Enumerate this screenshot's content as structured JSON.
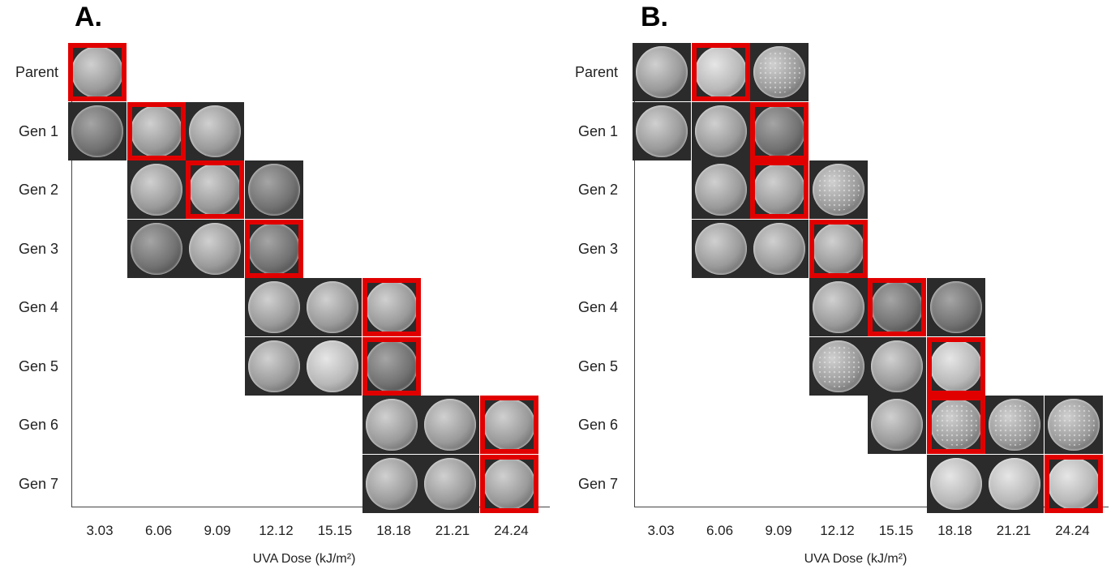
{
  "colors": {
    "highlight": "#e10000",
    "cell_background": "#2b2b2b",
    "axis": "#444444"
  },
  "panels": [
    {
      "letter": "A.",
      "rows": [
        "Parent",
        "Gen 1",
        "Gen 2",
        "Gen 3",
        "Gen 4",
        "Gen 5",
        "Gen 6",
        "Gen 7"
      ],
      "doses": [
        "3.03",
        "6.06",
        "9.09",
        "12.12",
        "15.15",
        "18.18",
        "21.21",
        "24.24"
      ],
      "xlabel": "UVA Dose (kJ/m²)",
      "plates": [
        {
          "row": "Parent",
          "dose": "3.03",
          "selected": true
        },
        {
          "row": "Gen 1",
          "dose": "3.03",
          "selected": false,
          "tone": "dark"
        },
        {
          "row": "Gen 1",
          "dose": "6.06",
          "selected": true
        },
        {
          "row": "Gen 1",
          "dose": "9.09",
          "selected": false
        },
        {
          "row": "Gen 2",
          "dose": "6.06",
          "selected": false
        },
        {
          "row": "Gen 2",
          "dose": "9.09",
          "selected": true
        },
        {
          "row": "Gen 2",
          "dose": "12.12",
          "selected": false,
          "tone": "dark"
        },
        {
          "row": "Gen 3",
          "dose": "6.06",
          "selected": false,
          "tone": "dark"
        },
        {
          "row": "Gen 3",
          "dose": "9.09",
          "selected": false
        },
        {
          "row": "Gen 3",
          "dose": "12.12",
          "selected": true,
          "tone": "dark"
        },
        {
          "row": "Gen 4",
          "dose": "12.12",
          "selected": false
        },
        {
          "row": "Gen 4",
          "dose": "15.15",
          "selected": false
        },
        {
          "row": "Gen 4",
          "dose": "18.18",
          "selected": true
        },
        {
          "row": "Gen 5",
          "dose": "12.12",
          "selected": false
        },
        {
          "row": "Gen 5",
          "dose": "15.15",
          "selected": false,
          "tone": "light"
        },
        {
          "row": "Gen 5",
          "dose": "18.18",
          "selected": true,
          "tone": "dark"
        },
        {
          "row": "Gen 6",
          "dose": "18.18",
          "selected": false
        },
        {
          "row": "Gen 6",
          "dose": "21.21",
          "selected": false
        },
        {
          "row": "Gen 6",
          "dose": "24.24",
          "selected": true
        },
        {
          "row": "Gen 7",
          "dose": "18.18",
          "selected": false
        },
        {
          "row": "Gen 7",
          "dose": "21.21",
          "selected": false
        },
        {
          "row": "Gen 7",
          "dose": "24.24",
          "selected": true
        }
      ]
    },
    {
      "letter": "B.",
      "rows": [
        "Parent",
        "Gen 1",
        "Gen 2",
        "Gen 3",
        "Gen 4",
        "Gen 5",
        "Gen 6",
        "Gen 7"
      ],
      "doses": [
        "3.03",
        "6.06",
        "9.09",
        "12.12",
        "15.15",
        "18.18",
        "21.21",
        "24.24"
      ],
      "xlabel": "UVA Dose (kJ/m²)",
      "plates": [
        {
          "row": "Parent",
          "dose": "3.03",
          "selected": false
        },
        {
          "row": "Parent",
          "dose": "6.06",
          "selected": true,
          "tone": "light"
        },
        {
          "row": "Parent",
          "dose": "9.09",
          "selected": false,
          "tone": "speckled"
        },
        {
          "row": "Gen 1",
          "dose": "3.03",
          "selected": false
        },
        {
          "row": "Gen 1",
          "dose": "6.06",
          "selected": false
        },
        {
          "row": "Gen 1",
          "dose": "9.09",
          "selected": true,
          "tone": "dark"
        },
        {
          "row": "Gen 2",
          "dose": "6.06",
          "selected": false
        },
        {
          "row": "Gen 2",
          "dose": "9.09",
          "selected": true
        },
        {
          "row": "Gen 2",
          "dose": "12.12",
          "selected": false,
          "tone": "speckled"
        },
        {
          "row": "Gen 3",
          "dose": "6.06",
          "selected": false
        },
        {
          "row": "Gen 3",
          "dose": "9.09",
          "selected": false
        },
        {
          "row": "Gen 3",
          "dose": "12.12",
          "selected": true
        },
        {
          "row": "Gen 4",
          "dose": "12.12",
          "selected": false
        },
        {
          "row": "Gen 4",
          "dose": "15.15",
          "selected": true,
          "tone": "dark"
        },
        {
          "row": "Gen 4",
          "dose": "18.18",
          "selected": false,
          "tone": "dark"
        },
        {
          "row": "Gen 5",
          "dose": "12.12",
          "selected": false,
          "tone": "speckled"
        },
        {
          "row": "Gen 5",
          "dose": "15.15",
          "selected": false
        },
        {
          "row": "Gen 5",
          "dose": "18.18",
          "selected": true,
          "tone": "light"
        },
        {
          "row": "Gen 6",
          "dose": "15.15",
          "selected": false
        },
        {
          "row": "Gen 6",
          "dose": "18.18",
          "selected": true,
          "tone": "speckled"
        },
        {
          "row": "Gen 6",
          "dose": "21.21",
          "selected": false,
          "tone": "speckled"
        },
        {
          "row": "Gen 6",
          "dose": "24.24",
          "selected": false,
          "tone": "speckled"
        },
        {
          "row": "Gen 7",
          "dose": "18.18",
          "selected": false,
          "tone": "light"
        },
        {
          "row": "Gen 7",
          "dose": "21.21",
          "selected": false,
          "tone": "light"
        },
        {
          "row": "Gen 7",
          "dose": "24.24",
          "selected": true,
          "tone": "light"
        }
      ]
    }
  ]
}
